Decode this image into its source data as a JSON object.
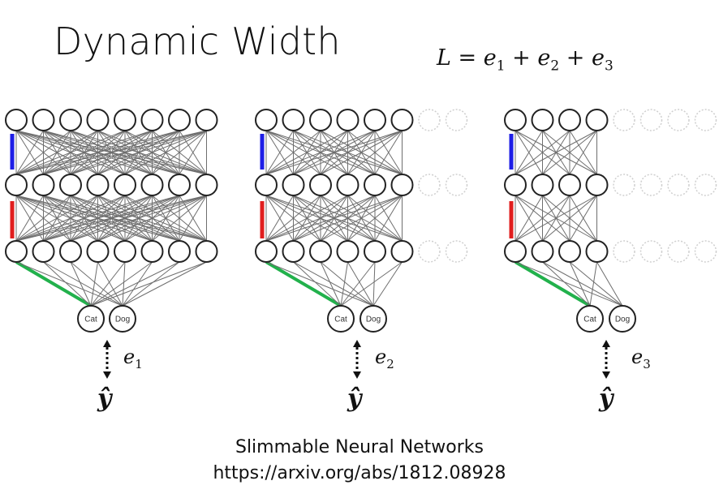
{
  "title": "Dynamic Width",
  "formula": {
    "lhs": "L",
    "eq": "=",
    "terms": [
      "e",
      "e",
      "e"
    ],
    "subs": [
      "1",
      "2",
      "3"
    ],
    "op": "+"
  },
  "networks": [
    {
      "active_per_layer": 8,
      "error_label": "e",
      "error_sub": "1",
      "output": "ŷ"
    },
    {
      "active_per_layer": 6,
      "error_label": "e",
      "error_sub": "2",
      "output": "ŷ"
    },
    {
      "active_per_layer": 4,
      "error_label": "e",
      "error_sub": "3",
      "output": "ŷ"
    }
  ],
  "total_per_layer": 8,
  "class_labels": [
    "Cat",
    "Dog"
  ],
  "colors": {
    "layer_bar_top": "#1e1ee6",
    "layer_bar_mid": "#e01e1e",
    "output_edge": "#22b14c",
    "edge": "#6e6e6e",
    "inactive_node": "#cfcfcf"
  },
  "caption": {
    "line1": "Slimmable Neural Networks",
    "line2": "https://arxiv.org/abs/1812.08928"
  }
}
